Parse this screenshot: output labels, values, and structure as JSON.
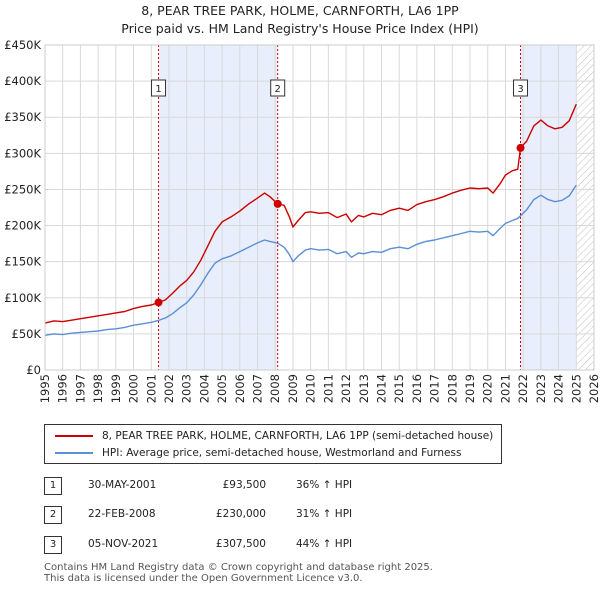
{
  "header": {
    "title": "8, PEAR TREE PARK, HOLME, CARNFORTH, LA6 1PP",
    "subtitle": "Price paid vs. HM Land Registry's House Price Index (HPI)"
  },
  "chart_data": {
    "type": "line",
    "title": "8, PEAR TREE PARK, HOLME, CARNFORTH, LA6 1PP",
    "subtitle": "Price paid vs. HM Land Registry's House Price Index (HPI)",
    "xlabel": "",
    "ylabel": "",
    "xlim": [
      1995,
      2026
    ],
    "ylim": [
      0,
      450000
    ],
    "x_ticks": [
      "1995",
      "1996",
      "1997",
      "1998",
      "1999",
      "2000",
      "2001",
      "2002",
      "2003",
      "2004",
      "2005",
      "2006",
      "2007",
      "2008",
      "2009",
      "2010",
      "2011",
      "2012",
      "2013",
      "2014",
      "2015",
      "2016",
      "2017",
      "2018",
      "2019",
      "2020",
      "2021",
      "2022",
      "2023",
      "2024",
      "2025",
      "2026"
    ],
    "y_ticks": [
      {
        "value": 0,
        "label": "£0"
      },
      {
        "value": 50000,
        "label": "£50K"
      },
      {
        "value": 100000,
        "label": "£100K"
      },
      {
        "value": 150000,
        "label": "£150K"
      },
      {
        "value": 200000,
        "label": "£200K"
      },
      {
        "value": 250000,
        "label": "£250K"
      },
      {
        "value": 300000,
        "label": "£300K"
      },
      {
        "value": 350000,
        "label": "£350K"
      },
      {
        "value": 400000,
        "label": "£400K"
      },
      {
        "value": 450000,
        "label": "£450K"
      }
    ],
    "grid": true,
    "shaded_ranges": [
      [
        2001.41,
        2008.14
      ],
      [
        2021.85,
        2025.0
      ]
    ],
    "future_hatch_from": 2025.0,
    "series": [
      {
        "name": "8, PEAR TREE PARK, HOLME, CARNFORTH, LA6 1PP (semi-detached house)",
        "color": "#cc0000",
        "points": [
          [
            1995.0,
            65000
          ],
          [
            1995.5,
            68000
          ],
          [
            1996.0,
            67000
          ],
          [
            1996.5,
            69000
          ],
          [
            1997.0,
            71000
          ],
          [
            1997.5,
            73000
          ],
          [
            1998.0,
            75000
          ],
          [
            1998.5,
            77000
          ],
          [
            1999.0,
            79000
          ],
          [
            1999.5,
            81000
          ],
          [
            2000.0,
            85000
          ],
          [
            2000.5,
            88000
          ],
          [
            2001.0,
            90000
          ],
          [
            2001.41,
            93500
          ],
          [
            2001.8,
            97000
          ],
          [
            2002.2,
            106000
          ],
          [
            2002.6,
            116000
          ],
          [
            2003.0,
            124000
          ],
          [
            2003.4,
            136000
          ],
          [
            2003.8,
            152000
          ],
          [
            2004.2,
            172000
          ],
          [
            2004.6,
            192000
          ],
          [
            2005.0,
            205000
          ],
          [
            2005.5,
            212000
          ],
          [
            2006.0,
            220000
          ],
          [
            2006.5,
            230000
          ],
          [
            2007.0,
            238000
          ],
          [
            2007.4,
            245000
          ],
          [
            2007.7,
            240000
          ],
          [
            2008.14,
            230000
          ],
          [
            2008.5,
            228000
          ],
          [
            2008.8,
            212000
          ],
          [
            2009.0,
            198000
          ],
          [
            2009.3,
            207000
          ],
          [
            2009.7,
            218000
          ],
          [
            2010.0,
            219000
          ],
          [
            2010.5,
            217000
          ],
          [
            2011.0,
            218000
          ],
          [
            2011.5,
            211000
          ],
          [
            2012.0,
            216000
          ],
          [
            2012.3,
            205000
          ],
          [
            2012.7,
            214000
          ],
          [
            2013.0,
            212000
          ],
          [
            2013.5,
            217000
          ],
          [
            2014.0,
            215000
          ],
          [
            2014.5,
            221000
          ],
          [
            2015.0,
            224000
          ],
          [
            2015.5,
            221000
          ],
          [
            2016.0,
            229000
          ],
          [
            2016.5,
            233000
          ],
          [
            2017.0,
            236000
          ],
          [
            2017.5,
            240000
          ],
          [
            2018.0,
            245000
          ],
          [
            2018.5,
            249000
          ],
          [
            2019.0,
            252000
          ],
          [
            2019.5,
            251000
          ],
          [
            2020.0,
            252000
          ],
          [
            2020.3,
            245000
          ],
          [
            2020.7,
            258000
          ],
          [
            2021.0,
            270000
          ],
          [
            2021.4,
            276000
          ],
          [
            2021.7,
            278000
          ],
          [
            2021.85,
            307500
          ],
          [
            2022.2,
            317000
          ],
          [
            2022.6,
            338000
          ],
          [
            2023.0,
            346000
          ],
          [
            2023.4,
            338000
          ],
          [
            2023.8,
            334000
          ],
          [
            2024.2,
            336000
          ],
          [
            2024.6,
            345000
          ],
          [
            2025.0,
            368000
          ]
        ]
      },
      {
        "name": "HPI: Average price, semi-detached house, Westmorland and Furness",
        "color": "#5b8fd6",
        "points": [
          [
            1995.0,
            48000
          ],
          [
            1995.5,
            50000
          ],
          [
            1996.0,
            49000
          ],
          [
            1996.5,
            51000
          ],
          [
            1997.0,
            52000
          ],
          [
            1997.5,
            53000
          ],
          [
            1998.0,
            54000
          ],
          [
            1998.5,
            56000
          ],
          [
            1999.0,
            57000
          ],
          [
            1999.5,
            59000
          ],
          [
            2000.0,
            62000
          ],
          [
            2000.5,
            64000
          ],
          [
            2001.0,
            66000
          ],
          [
            2001.41,
            68700
          ],
          [
            2001.8,
            72000
          ],
          [
            2002.2,
            78000
          ],
          [
            2002.6,
            86000
          ],
          [
            2003.0,
            93000
          ],
          [
            2003.4,
            104000
          ],
          [
            2003.8,
            118000
          ],
          [
            2004.2,
            134000
          ],
          [
            2004.6,
            148000
          ],
          [
            2005.0,
            154000
          ],
          [
            2005.5,
            158000
          ],
          [
            2006.0,
            164000
          ],
          [
            2006.5,
            170000
          ],
          [
            2007.0,
            176000
          ],
          [
            2007.4,
            180000
          ],
          [
            2007.7,
            178000
          ],
          [
            2008.14,
            175600
          ],
          [
            2008.5,
            170000
          ],
          [
            2008.8,
            160000
          ],
          [
            2009.0,
            150000
          ],
          [
            2009.3,
            158000
          ],
          [
            2009.7,
            166000
          ],
          [
            2010.0,
            168000
          ],
          [
            2010.5,
            166000
          ],
          [
            2011.0,
            167000
          ],
          [
            2011.5,
            161000
          ],
          [
            2012.0,
            164000
          ],
          [
            2012.3,
            156000
          ],
          [
            2012.7,
            162000
          ],
          [
            2013.0,
            161000
          ],
          [
            2013.5,
            164000
          ],
          [
            2014.0,
            163000
          ],
          [
            2014.5,
            168000
          ],
          [
            2015.0,
            170000
          ],
          [
            2015.5,
            168000
          ],
          [
            2016.0,
            174000
          ],
          [
            2016.5,
            178000
          ],
          [
            2017.0,
            180000
          ],
          [
            2017.5,
            183000
          ],
          [
            2018.0,
            186000
          ],
          [
            2018.5,
            189000
          ],
          [
            2019.0,
            192000
          ],
          [
            2019.5,
            191000
          ],
          [
            2020.0,
            192000
          ],
          [
            2020.3,
            186000
          ],
          [
            2020.7,
            196000
          ],
          [
            2021.0,
            203000
          ],
          [
            2021.4,
            207000
          ],
          [
            2021.7,
            210000
          ],
          [
            2021.85,
            213500
          ],
          [
            2022.2,
            222000
          ],
          [
            2022.6,
            236000
          ],
          [
            2023.0,
            242000
          ],
          [
            2023.4,
            236000
          ],
          [
            2023.8,
            233000
          ],
          [
            2024.2,
            235000
          ],
          [
            2024.6,
            241000
          ],
          [
            2025.0,
            256000
          ]
        ]
      }
    ],
    "sales": [
      {
        "label": "1",
        "x": 2001.41,
        "value": 93500
      },
      {
        "label": "2",
        "x": 2008.14,
        "value": 230000
      },
      {
        "label": "3",
        "x": 2021.85,
        "value": 307500
      }
    ]
  },
  "legend": {
    "items": [
      {
        "label": "8, PEAR TREE PARK, HOLME, CARNFORTH, LA6 1PP (semi-detached house)",
        "color": "#cc0000"
      },
      {
        "label": "HPI: Average price, semi-detached house, Westmorland and Furness",
        "color": "#5b8fd6"
      }
    ]
  },
  "sales_table": [
    {
      "num": "1",
      "date": "30-MAY-2001",
      "price": "£93,500",
      "hpi": "36% ↑ HPI"
    },
    {
      "num": "2",
      "date": "22-FEB-2008",
      "price": "£230,000",
      "hpi": "31% ↑ HPI"
    },
    {
      "num": "3",
      "date": "05-NOV-2021",
      "price": "£307,500",
      "hpi": "44% ↑ HPI"
    }
  ],
  "footer": {
    "line1": "Contains HM Land Registry data © Crown copyright and database right 2025.",
    "line2": "This data is licensed under the Open Government Licence v3.0."
  }
}
